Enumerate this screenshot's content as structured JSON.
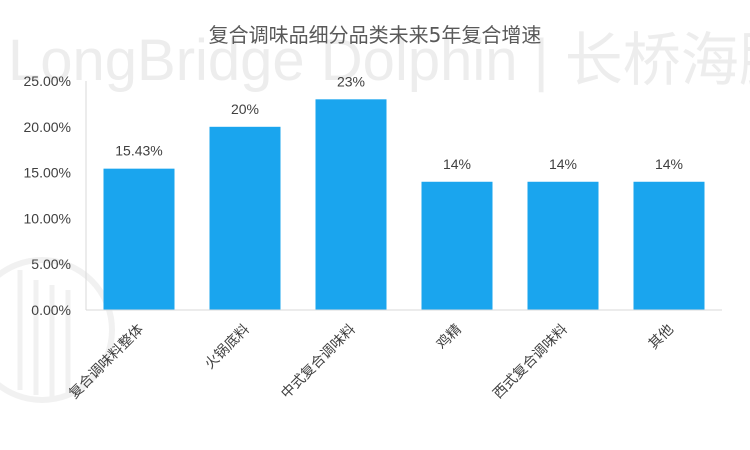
{
  "watermark": "LongBridge Dolphin | 长桥海豚投研",
  "colors": {
    "bar": "#1AA5EE",
    "axis": "#D9D9D9",
    "text": "#404040",
    "title": "#595959",
    "watermark": "#EDEDED"
  },
  "chart_data": {
    "type": "bar",
    "title": "复合调味品细分品类未来5年复合增速",
    "xlabel": "",
    "ylabel": "",
    "ylim": [
      0,
      25
    ],
    "ytick_values": [
      0,
      5,
      10,
      15,
      20,
      25
    ],
    "ytick_labels": [
      "0.00%",
      "5.00%",
      "10.00%",
      "15.00%",
      "20.00%",
      "25.00%"
    ],
    "grid": false,
    "legend": "none",
    "categories": [
      "复合调味料整体",
      "火锅底料",
      "中式复合调味料",
      "鸡精",
      "西式复合调味料",
      "其他"
    ],
    "values": [
      15.43,
      20,
      23,
      14,
      14,
      14
    ],
    "data_labels": [
      "15.43%",
      "20%",
      "23%",
      "14%",
      "14%",
      "14%"
    ]
  }
}
